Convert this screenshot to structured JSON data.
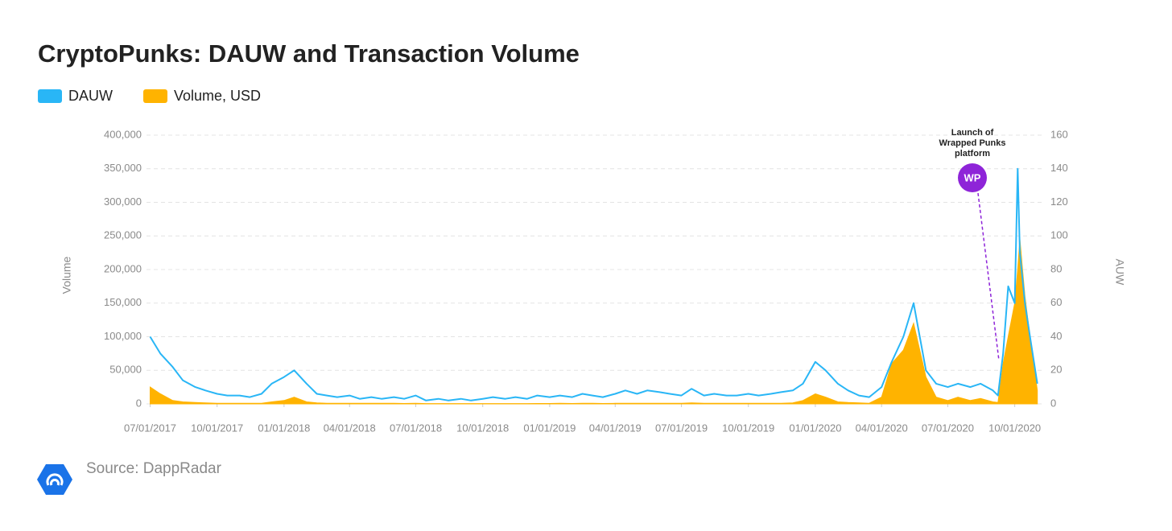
{
  "chart_data": {
    "type": "area-line",
    "title": "CryptoPunks: DAUW and Transaction Volume",
    "source": "Source: DappRadar",
    "y_label": "Volume",
    "y2_label": "AUW",
    "annotation": [
      "Launch of",
      "Wrapped Punks",
      "platform"
    ],
    "annotation_badge": "WP",
    "grid": true,
    "xlim": [
      "2017-06-26",
      "2020-11-08"
    ],
    "xticks": [
      {
        "value": "2017-07-01",
        "label": "07/01/2017"
      },
      {
        "value": "2017-10-01",
        "label": "10/01/2017"
      },
      {
        "value": "2018-01-01",
        "label": "01/01/2018"
      },
      {
        "value": "2018-04-01",
        "label": "04/01/2018"
      },
      {
        "value": "2018-07-01",
        "label": "07/01/2018"
      },
      {
        "value": "2018-10-01",
        "label": "10/01/2018"
      },
      {
        "value": "2019-01-01",
        "label": "01/01/2019"
      },
      {
        "value": "2019-04-01",
        "label": "04/01/2019"
      },
      {
        "value": "2019-07-01",
        "label": "07/01/2019"
      },
      {
        "value": "2019-10-01",
        "label": "10/01/2019"
      },
      {
        "value": "2020-01-01",
        "label": "01/01/2020"
      },
      {
        "value": "2020-04-01",
        "label": "04/01/2020"
      },
      {
        "value": "2020-07-01",
        "label": "07/01/2020"
      },
      {
        "value": "2020-10-01",
        "label": "10/01/2020"
      }
    ],
    "ylim": [
      0,
      400000
    ],
    "yticks": [
      0,
      {
        "value": 50000,
        "label": "50,000"
      },
      {
        "value": 100000,
        "label": "100,000"
      },
      {
        "value": 150000,
        "label": "150,000"
      },
      {
        "value": 200000,
        "label": "200,000"
      },
      {
        "value": 250000,
        "label": "250,000"
      },
      {
        "value": 300000,
        "label": "300,000"
      },
      {
        "value": 350000,
        "label": "350,000"
      },
      {
        "value": 400000,
        "label": "400,000"
      }
    ],
    "y2lim": [
      0,
      160
    ],
    "y2ticks": [
      0,
      20,
      40,
      60,
      80,
      100,
      120,
      140,
      160
    ],
    "x": [
      "2017-07-01",
      "2017-07-15",
      "2017-08-01",
      "2017-08-15",
      "2017-09-01",
      "2017-09-15",
      "2017-10-01",
      "2017-10-15",
      "2017-11-01",
      "2017-11-15",
      "2017-12-01",
      "2017-12-15",
      "2018-01-01",
      "2018-01-15",
      "2018-02-01",
      "2018-02-15",
      "2018-03-01",
      "2018-03-15",
      "2018-04-01",
      "2018-04-15",
      "2018-05-01",
      "2018-05-15",
      "2018-06-01",
      "2018-06-15",
      "2018-07-01",
      "2018-07-15",
      "2018-08-01",
      "2018-08-15",
      "2018-09-01",
      "2018-09-15",
      "2018-10-01",
      "2018-10-15",
      "2018-11-01",
      "2018-11-15",
      "2018-12-01",
      "2018-12-15",
      "2019-01-01",
      "2019-01-15",
      "2019-02-01",
      "2019-02-15",
      "2019-03-01",
      "2019-03-15",
      "2019-04-01",
      "2019-04-15",
      "2019-05-01",
      "2019-05-15",
      "2019-06-01",
      "2019-06-15",
      "2019-07-01",
      "2019-07-15",
      "2019-08-01",
      "2019-08-15",
      "2019-09-01",
      "2019-09-15",
      "2019-10-01",
      "2019-10-15",
      "2019-11-01",
      "2019-11-15",
      "2019-12-01",
      "2019-12-15",
      "2020-01-01",
      "2020-01-15",
      "2020-02-01",
      "2020-02-15",
      "2020-03-01",
      "2020-03-15",
      "2020-04-01",
      "2020-04-15",
      "2020-05-01",
      "2020-05-15",
      "2020-06-01",
      "2020-06-15",
      "2020-07-01",
      "2020-07-15",
      "2020-08-01",
      "2020-08-15",
      "2020-09-01",
      "2020-09-08",
      "2020-09-15",
      "2020-09-22",
      "2020-10-01",
      "2020-10-05",
      "2020-10-08",
      "2020-10-15",
      "2020-10-22",
      "2020-11-01"
    ],
    "series": [
      {
        "name": "DAUW",
        "color": "#29b6f6",
        "axis": "y2",
        "values": [
          40,
          30,
          22,
          14,
          10,
          8,
          6,
          5,
          5,
          4,
          6,
          12,
          16,
          20,
          12,
          6,
          5,
          4,
          5,
          3,
          4,
          3,
          4,
          3,
          5,
          2,
          3,
          2,
          3,
          2,
          3,
          4,
          3,
          4,
          3,
          5,
          4,
          5,
          4,
          6,
          5,
          4,
          6,
          8,
          6,
          8,
          7,
          6,
          5,
          9,
          5,
          6,
          5,
          5,
          6,
          5,
          6,
          7,
          8,
          12,
          25,
          20,
          12,
          8,
          5,
          4,
          10,
          25,
          40,
          60,
          20,
          12,
          10,
          12,
          10,
          12,
          8,
          5,
          30,
          70,
          60,
          140,
          90,
          60,
          40,
          12
        ]
      },
      {
        "name": "Volume, USD",
        "color": "#ffb300",
        "values": [
          25000,
          15000,
          5000,
          3000,
          2000,
          1500,
          1000,
          1000,
          1000,
          1000,
          1000,
          3000,
          5000,
          10000,
          3000,
          1500,
          1000,
          1000,
          1000,
          800,
          800,
          800,
          800,
          600,
          800,
          500,
          500,
          500,
          500,
          500,
          500,
          500,
          500,
          500,
          500,
          600,
          600,
          800,
          600,
          800,
          800,
          600,
          800,
          1000,
          800,
          1000,
          1000,
          800,
          800,
          1500,
          800,
          800,
          800,
          800,
          800,
          800,
          800,
          1000,
          1500,
          5000,
          15000,
          10000,
          3000,
          2000,
          1500,
          1000,
          10000,
          60000,
          80000,
          120000,
          40000,
          10000,
          5000,
          10000,
          5000,
          8000,
          3000,
          2000,
          60000,
          100000,
          150000,
          200000,
          245000,
          160000,
          100000,
          20000
        ]
      }
    ]
  }
}
